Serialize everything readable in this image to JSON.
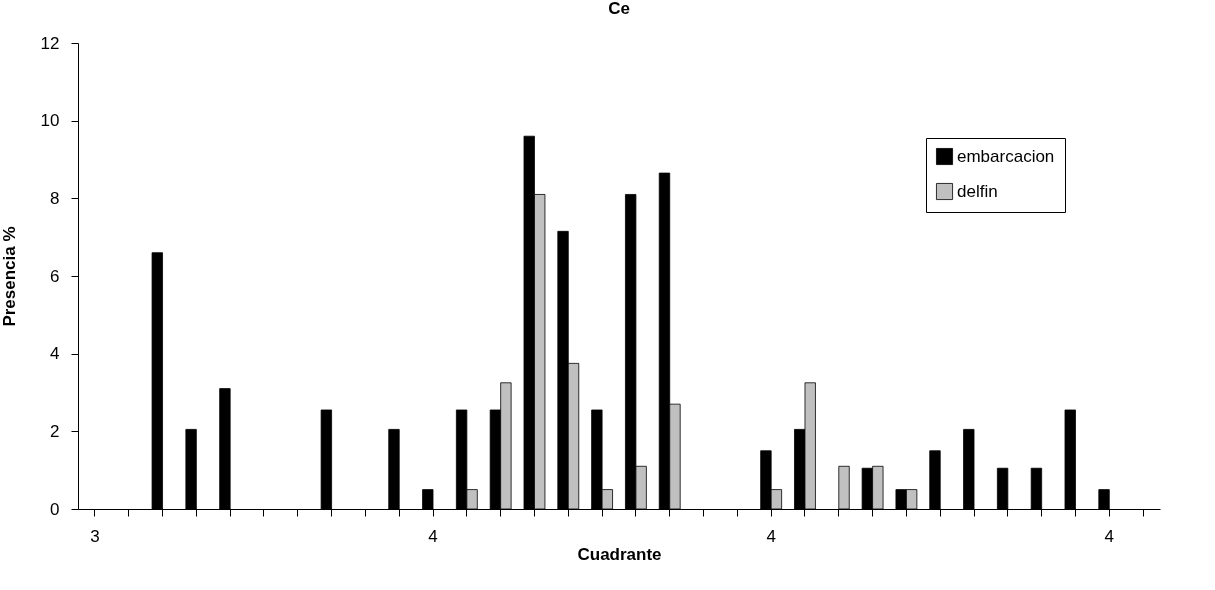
{
  "chart_data": {
    "type": "bar",
    "title": "Ce",
    "xlabel": "Cuadrante",
    "ylabel": "Presencia %",
    "categories": [
      "3",
      null,
      null,
      null,
      null,
      null,
      null,
      null,
      null,
      null,
      "4",
      null,
      null,
      null,
      null,
      null,
      null,
      null,
      null,
      null,
      "4",
      null,
      null,
      null,
      null,
      null,
      null,
      null,
      null,
      null,
      "4",
      null
    ],
    "series": [
      {
        "name": "embarcacion",
        "color": "#000000",
        "values": [
          null,
          null,
          6.6,
          2.05,
          3.1,
          null,
          null,
          2.55,
          null,
          2.05,
          0.5,
          2.55,
          2.55,
          9.6,
          7.15,
          2.55,
          8.1,
          8.65,
          null,
          null,
          1.5,
          2.05,
          null,
          1.05,
          0.5,
          1.5,
          2.05,
          1.05,
          1.05,
          2.55,
          0.5,
          null
        ]
      },
      {
        "name": "delfin",
        "color": "#c0c0c0",
        "values": [
          null,
          null,
          null,
          null,
          null,
          null,
          null,
          null,
          null,
          null,
          null,
          0.5,
          3.25,
          8.1,
          3.75,
          0.5,
          1.1,
          2.7,
          null,
          null,
          0.5,
          3.25,
          1.1,
          1.1,
          0.5,
          null,
          null,
          null,
          null,
          null,
          null,
          null
        ]
      }
    ],
    "ylim": [
      0,
      12
    ],
    "yticks": [
      0,
      2,
      4,
      6,
      8,
      10,
      12
    ],
    "legend": "top right"
  }
}
